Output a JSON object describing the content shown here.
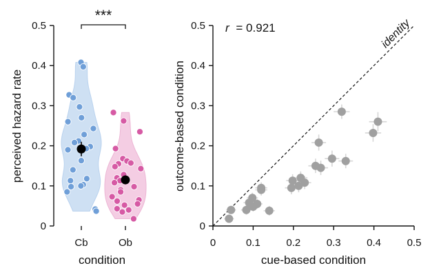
{
  "chart_data": [
    {
      "type": "violin",
      "xlabel": "condition",
      "ylabel": "perceived hazard rate",
      "ylim": [
        0,
        0.5
      ],
      "yticks": [
        "0",
        "0.1",
        "0.2",
        "0.3",
        "0.4",
        "0.5"
      ],
      "categories": [
        "Cb",
        "Ob"
      ],
      "significance": "***",
      "colors": {
        "Cb": "#6f9fd8",
        "Ob": "#d65aa4",
        "Cb_fill": "#c6dbf1",
        "Ob_fill": "#f2c4de",
        "mean": "#000000"
      },
      "series": [
        {
          "name": "Cb",
          "mean": 0.192,
          "err": 0.018,
          "points": [
            0.408,
            0.397,
            0.327,
            0.32,
            0.297,
            0.27,
            0.26,
            0.243,
            0.228,
            0.212,
            0.208,
            0.198,
            0.193,
            0.19,
            0.163,
            0.14,
            0.118,
            0.113,
            0.103,
            0.1,
            0.098,
            0.085,
            0.042,
            0.037
          ]
        },
        {
          "name": "Ob",
          "mean": 0.115,
          "err": 0.011,
          "points": [
            0.283,
            0.262,
            0.235,
            0.193,
            0.168,
            0.162,
            0.157,
            0.155,
            0.148,
            0.143,
            0.128,
            0.12,
            0.115,
            0.113,
            0.108,
            0.098,
            0.09,
            0.085,
            0.073,
            0.065,
            0.062,
            0.055,
            0.052,
            0.043,
            0.04,
            0.035,
            0.018
          ]
        }
      ]
    },
    {
      "type": "scatter",
      "xlabel": "cue-based condition",
      "ylabel": "outcome-based condition",
      "xlim": [
        0,
        0.5
      ],
      "ylim": [
        0,
        0.5
      ],
      "xticks": [
        "0",
        "0.1",
        "0.2",
        "0.3",
        "0.4",
        "0.5"
      ],
      "yticks": [
        "0",
        "0.1",
        "0.2",
        "0.3",
        "0.4",
        "0.5"
      ],
      "annotation_r": "r",
      "annotation_value": "= 0.921",
      "identity_label": "identity",
      "colors": {
        "point": "#a0a0a0",
        "error": "#d6d6d6",
        "identity": "#111111"
      },
      "points": [
        {
          "x": 0.04,
          "y": 0.018,
          "ex": 0.012,
          "ey": 0.01
        },
        {
          "x": 0.045,
          "y": 0.04,
          "ex": 0.012,
          "ey": 0.01
        },
        {
          "x": 0.083,
          "y": 0.04,
          "ex": 0.013,
          "ey": 0.012
        },
        {
          "x": 0.09,
          "y": 0.058,
          "ex": 0.014,
          "ey": 0.012
        },
        {
          "x": 0.1,
          "y": 0.048,
          "ex": 0.013,
          "ey": 0.012
        },
        {
          "x": 0.098,
          "y": 0.07,
          "ex": 0.014,
          "ey": 0.013
        },
        {
          "x": 0.11,
          "y": 0.055,
          "ex": 0.013,
          "ey": 0.012
        },
        {
          "x": 0.12,
          "y": 0.09,
          "ex": 0.015,
          "ey": 0.014
        },
        {
          "x": 0.12,
          "y": 0.095,
          "ex": 0.015,
          "ey": 0.014
        },
        {
          "x": 0.14,
          "y": 0.038,
          "ex": 0.014,
          "ey": 0.012
        },
        {
          "x": 0.195,
          "y": 0.095,
          "ex": 0.016,
          "ey": 0.016
        },
        {
          "x": 0.198,
          "y": 0.113,
          "ex": 0.016,
          "ey": 0.016
        },
        {
          "x": 0.213,
          "y": 0.1,
          "ex": 0.016,
          "ey": 0.016
        },
        {
          "x": 0.218,
          "y": 0.12,
          "ex": 0.017,
          "ey": 0.016
        },
        {
          "x": 0.228,
          "y": 0.108,
          "ex": 0.016,
          "ey": 0.016
        },
        {
          "x": 0.255,
          "y": 0.15,
          "ex": 0.018,
          "ey": 0.018
        },
        {
          "x": 0.263,
          "y": 0.208,
          "ex": 0.018,
          "ey": 0.02
        },
        {
          "x": 0.268,
          "y": 0.145,
          "ex": 0.018,
          "ey": 0.018
        },
        {
          "x": 0.296,
          "y": 0.168,
          "ex": 0.018,
          "ey": 0.02
        },
        {
          "x": 0.32,
          "y": 0.285,
          "ex": 0.02,
          "ey": 0.018
        },
        {
          "x": 0.33,
          "y": 0.162,
          "ex": 0.018,
          "ey": 0.018
        },
        {
          "x": 0.398,
          "y": 0.232,
          "ex": 0.02,
          "ey": 0.022
        },
        {
          "x": 0.41,
          "y": 0.26,
          "ex": 0.022,
          "ey": 0.024
        }
      ]
    }
  ]
}
